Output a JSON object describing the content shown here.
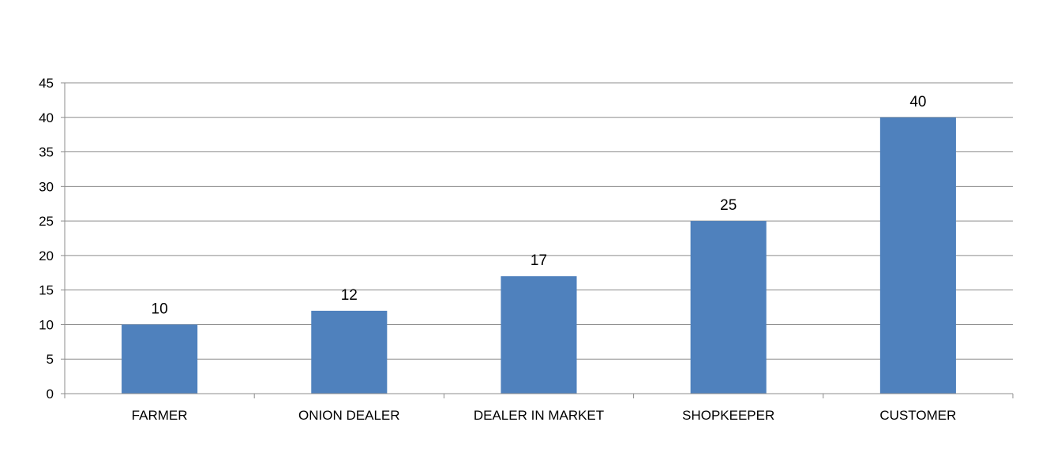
{
  "chart_data": {
    "type": "bar",
    "categories": [
      "FARMER",
      "ONION DEALER",
      "DEALER IN MARKET",
      "SHOPKEEPER",
      "CUSTOMER"
    ],
    "values": [
      10,
      12,
      17,
      25,
      40
    ],
    "data_labels": [
      "10",
      "12",
      "17",
      "25",
      "40"
    ],
    "ylim": [
      0,
      45
    ],
    "yticks": [
      0,
      5,
      10,
      15,
      20,
      25,
      30,
      35,
      40,
      45
    ],
    "grid": true,
    "legend": "none",
    "bar_color": "#4F81BD"
  }
}
